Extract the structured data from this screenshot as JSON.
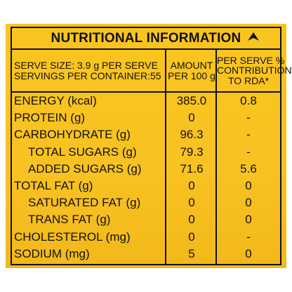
{
  "title": "NUTRITIONAL INFORMATION",
  "header": {
    "serve_size": "SERVE SIZE: 3.9 g PER SERVE",
    "servings": "SERVINGS PER CONTAINER:55",
    "amount_line1": "AMOUNT",
    "amount_line2": "PER 100 g",
    "rda_line1": "PER SERVE %",
    "rda_line2": "CONTRIBUTION",
    "rda_line3": "TO RDA*"
  },
  "rows": [
    {
      "name": "ENERGY (kcal)",
      "per100": "385.0",
      "rda": "0.8",
      "indent": false
    },
    {
      "name": "PROTEIN (g)",
      "per100": "0",
      "rda": "-",
      "indent": false
    },
    {
      "name": "CARBOHYDRATE (g)",
      "per100": "96.3",
      "rda": "-",
      "indent": false
    },
    {
      "name": "TOTAL SUGARS (g)",
      "per100": "79.3",
      "rda": "-",
      "indent": true
    },
    {
      "name": "ADDED SUGARS (g)",
      "per100": "71.6",
      "rda": "5.6",
      "indent": true
    },
    {
      "name": "TOTAL FAT (g)",
      "per100": "0",
      "rda": "0",
      "indent": false
    },
    {
      "name": "SATURATED FAT (g)",
      "per100": "0",
      "rda": "0",
      "indent": true
    },
    {
      "name": "TRANS FAT (g)",
      "per100": "0",
      "rda": "0",
      "indent": true
    },
    {
      "name": "CHOLESTEROL (mg)",
      "per100": "0",
      "rda": "-",
      "indent": false
    },
    {
      "name": "SODIUM (mg)",
      "per100": "5",
      "rda": "0",
      "indent": false
    }
  ],
  "colors": {
    "background": "#f8c222",
    "ink": "#111111"
  },
  "icons": {
    "title_mark": "arrowhead-icon"
  }
}
